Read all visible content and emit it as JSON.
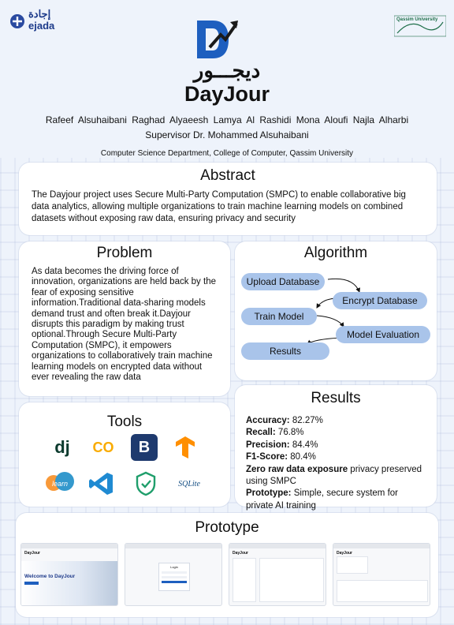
{
  "header": {
    "ejada_arabic": "إجادة",
    "ejada_latin": "ejada",
    "qu_name": "Qassim University",
    "arabic_name": "ديجـــور",
    "title": "DayJour",
    "authors": "Rafeef Alsuhaibani  Raghad Alyaeesh  Lamya Al Rashidi  Mona Aloufi  Najla Alharbi",
    "supervisor": "Supervisor Dr. Mohammed Alsuhaibani",
    "department": "Computer Science Department, College of Computer, Qassim University"
  },
  "abstract": {
    "heading": "Abstract",
    "text": "The Dayjour project uses Secure Multi-Party Computation (SMPC) to enable collaborative big data analytics, allowing multiple organizations to train machine learning models on combined datasets without exposing raw data, ensuring privacy and security"
  },
  "problem": {
    "heading": "Problem",
    "text": "As data becomes the driving force of innovation, organizations are held back by the fear of exposing sensitive information.Traditional data-sharing models demand trust and often break it.Dayjour disrupts this paradigm by making trust optional.Through Secure Multi-Party Computation (SMPC), it empowers organizations to collaboratively train machine learning models on encrypted data without ever revealing the raw data"
  },
  "algorithm": {
    "heading": "Algorithm",
    "steps": [
      "Upload Database",
      "Encrypt Database",
      "Train Model",
      "Model Evaluation",
      "Results"
    ]
  },
  "tools": {
    "heading": "Tools",
    "icons": [
      "django-icon",
      "colab-icon",
      "bootstrap-icon",
      "tensorflow-icon",
      "scikit-learn-icon",
      "vscode-icon",
      "shield-icon",
      "sqlite-icon"
    ],
    "labels": {
      "django": "dj",
      "colab": "CO",
      "bootstrap": "B",
      "sklearn": "learn",
      "sqlite": "SQLite"
    }
  },
  "results": {
    "heading": "Results",
    "accuracy_label": "Accuracy:",
    "accuracy_value": "82.27%",
    "recall_label": "Recall:",
    "recall_value": "76.8%",
    "precision_label": "Precision:",
    "precision_value": "84.4%",
    "f1_label": "F1-Score:",
    "f1_value": "80.4%",
    "privacy_label": "Zero raw data exposure",
    "privacy_value": " privacy preserved using SMPC",
    "prototype_label": "Prototype:",
    "prototype_value": " Simple, secure system for private AI training"
  },
  "prototype": {
    "heading": "Prototype",
    "shot1_title": "DayJour",
    "shot1_hero": "Welcome to DayJour",
    "shot2_title": "Login",
    "shot3_title": "DayJour",
    "shot4_title": "DayJour"
  },
  "colors": {
    "pill": "#a9c4ea",
    "brand_blue": "#1e5fbf",
    "card_bg": "#ffffff"
  }
}
